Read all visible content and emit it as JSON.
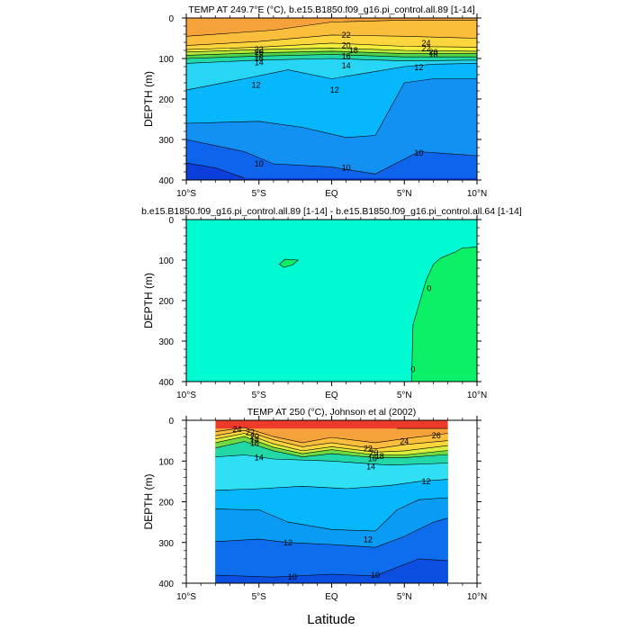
{
  "figure": {
    "x_axis_label": "Latitude"
  },
  "chart_data": [
    {
      "type": "contour",
      "title": "TEMP AT 249.7°E (°C), b.e15.B1850.f09_g16.pi_control.all.89 [1-14]",
      "xlabel": "Latitude",
      "ylabel": "DEPTH (m)",
      "xlim": [
        -10,
        10
      ],
      "ylim": [
        400,
        0
      ],
      "x_ticks": [
        "10°S",
        "5°S",
        "EQ",
        "5°N",
        "10°N"
      ],
      "y_ticks": [
        "0",
        "100",
        "200",
        "300",
        "400"
      ],
      "data_x_range": [
        -10,
        10
      ],
      "contour_interval": 1,
      "bands": [
        {
          "min": 26,
          "max": 28,
          "color": "#f5a23a"
        },
        {
          "min": 24,
          "max": 26,
          "color": "#fbbd3c"
        },
        {
          "min": 22,
          "max": 24,
          "color": "#fdd63e"
        },
        {
          "min": 20,
          "max": 22,
          "color": "#f3ef3c"
        },
        {
          "min": 18,
          "max": 20,
          "color": "#b5e73b"
        },
        {
          "min": 16,
          "max": 18,
          "color": "#4fd44a"
        },
        {
          "min": 14,
          "max": 16,
          "color": "#21d8a6"
        },
        {
          "min": 12,
          "max": 14,
          "color": "#27d6f5"
        },
        {
          "min": 11,
          "max": 12,
          "color": "#07b7fb"
        },
        {
          "min": 10,
          "max": 11,
          "color": "#1291f2"
        },
        {
          "min": 9,
          "max": 10,
          "color": "#0e64ea"
        },
        {
          "min": 8,
          "max": 9,
          "color": "#0b3edb"
        }
      ],
      "contours": [
        {
          "level": 26,
          "points": [
            [
              -10,
              45
            ],
            [
              -4,
              30
            ],
            [
              0,
              10
            ],
            [
              5,
              5
            ],
            [
              10,
              5
            ]
          ]
        },
        {
          "level": 24,
          "points": [
            [
              -10,
              68
            ],
            [
              -5,
              58
            ],
            [
              0,
              42
            ],
            [
              5,
              45
            ],
            [
              10,
              50
            ]
          ]
        },
        {
          "level": 22,
          "points": [
            [
              -10,
              78
            ],
            [
              -5,
              72
            ],
            [
              0,
              62
            ],
            [
              5,
              70
            ],
            [
              10,
              72
            ]
          ]
        },
        {
          "level": 20,
          "points": [
            [
              -10,
              84
            ],
            [
              -5,
              78
            ],
            [
              0,
              74
            ],
            [
              5,
              80
            ],
            [
              10,
              82
            ]
          ]
        },
        {
          "level": 18,
          "points": [
            [
              -10,
              92
            ],
            [
              -5,
              86
            ],
            [
              0,
              82
            ],
            [
              5,
              88
            ],
            [
              10,
              88
            ]
          ]
        },
        {
          "level": 16,
          "points": [
            [
              -10,
              100
            ],
            [
              -5,
              94
            ],
            [
              0,
              90
            ],
            [
              5,
              96
            ],
            [
              10,
              96
            ]
          ]
        },
        {
          "level": 14,
          "points": [
            [
              -10,
              112
            ],
            [
              -5,
              104
            ],
            [
              0,
              100
            ],
            [
              5,
              106
            ],
            [
              10,
              104
            ]
          ]
        },
        {
          "level": 12,
          "points": [
            [
              -10,
              178
            ],
            [
              -6,
              150
            ],
            [
              -3,
              128
            ],
            [
              0,
              150
            ],
            [
              3,
              132
            ],
            [
              5,
              120
            ],
            [
              7,
              114
            ],
            [
              10,
              112
            ]
          ]
        },
        {
          "level": 11,
          "points": [
            [
              -10,
              260
            ],
            [
              -5,
              255
            ],
            [
              -2,
              270
            ],
            [
              1,
              295
            ],
            [
              3,
              290
            ],
            [
              5,
              160
            ],
            [
              7,
              150
            ],
            [
              10,
              150
            ]
          ]
        },
        {
          "level": 10,
          "points": [
            [
              -10,
              300
            ],
            [
              -6,
              330
            ],
            [
              -4,
              360
            ],
            [
              0,
              368
            ],
            [
              3,
              385
            ],
            [
              6,
              330
            ],
            [
              10,
              340
            ]
          ]
        },
        {
          "level": 9,
          "points": [
            [
              -10,
              358
            ],
            [
              -8,
              370
            ],
            [
              -6,
              395
            ]
          ]
        }
      ],
      "labels": [
        {
          "text": "22",
          "x": -5,
          "y": 78
        },
        {
          "text": "20",
          "x": -5,
          "y": 84
        },
        {
          "text": "18",
          "x": -5,
          "y": 92
        },
        {
          "text": "16",
          "x": -5,
          "y": 100
        },
        {
          "text": "14",
          "x": -5,
          "y": 110
        },
        {
          "text": "22",
          "x": 1,
          "y": 42
        },
        {
          "text": "20",
          "x": 1,
          "y": 68
        },
        {
          "text": "18",
          "x": 1.5,
          "y": 80
        },
        {
          "text": "16",
          "x": 1,
          "y": 94
        },
        {
          "text": "14",
          "x": 1,
          "y": 118
        },
        {
          "text": "12",
          "x": 0.2,
          "y": 178
        },
        {
          "text": "12",
          "x": -5.2,
          "y": 165
        },
        {
          "text": "12",
          "x": 6,
          "y": 122
        },
        {
          "text": "24",
          "x": 6.5,
          "y": 62
        },
        {
          "text": "22",
          "x": 6.5,
          "y": 75
        },
        {
          "text": "20",
          "x": 7,
          "y": 84
        },
        {
          "text": "18",
          "x": 7,
          "y": 90
        },
        {
          "text": "10",
          "x": -5,
          "y": 360
        },
        {
          "text": "10",
          "x": 1,
          "y": 370
        },
        {
          "text": "10",
          "x": 6,
          "y": 333
        }
      ]
    },
    {
      "type": "contour",
      "title": "b.e15.B1850.f09_g16.pi_control.all.89 [1-14] - b.e15.B1850.f09_g16.pi_control.all.64 [1-14]",
      "xlabel": "Latitude",
      "ylabel": "DEPTH (m)",
      "xlim": [
        -10,
        10
      ],
      "ylim": [
        400,
        0
      ],
      "x_ticks": [
        "10°S",
        "5°S",
        "EQ",
        "5°N",
        "10°N"
      ],
      "y_ticks": [
        "0",
        "100",
        "200",
        "300",
        "400"
      ],
      "data_x_range": [
        -10,
        10
      ],
      "bands": [
        {
          "min": -0.5,
          "max": 0,
          "color": "#00fad2"
        },
        {
          "min": 0,
          "max": 0.5,
          "color": "#0bf066"
        }
      ],
      "contours": [
        {
          "level": 0,
          "points": [
            [
              5.5,
              400
            ],
            [
              5.6,
              260
            ],
            [
              6.5,
              150
            ],
            [
              7,
              110
            ],
            [
              7.5,
              95
            ],
            [
              8.5,
              80
            ],
            [
              9,
              70
            ],
            [
              10,
              68
            ]
          ]
        },
        {
          "level": 0,
          "closed": true,
          "points": [
            [
              -3.6,
              110
            ],
            [
              -3.2,
              98
            ],
            [
              -2.3,
              100
            ],
            [
              -2.7,
              112
            ],
            [
              -3.3,
              118
            ]
          ]
        }
      ],
      "labels": [
        {
          "text": "0",
          "x": 6.7,
          "y": 170
        },
        {
          "text": "0",
          "x": 5.6,
          "y": 370
        }
      ]
    },
    {
      "type": "contour",
      "title": "TEMP AT 250 (°C), Johnson et al (2002)",
      "xlabel": "Latitude",
      "ylabel": "DEPTH (m)",
      "xlim": [
        -10,
        10
      ],
      "ylim": [
        400,
        0
      ],
      "x_ticks": [
        "10°S",
        "5°S",
        "EQ",
        "5°N",
        "10°N"
      ],
      "y_ticks": [
        "0",
        "100",
        "200",
        "300",
        "400"
      ],
      "data_x_range": [
        -8,
        8
      ],
      "contour_interval": 1,
      "bands": [
        {
          "min": 26,
          "max": 28,
          "color": "#ee3a2b"
        },
        {
          "min": 24,
          "max": 26,
          "color": "#f5a23a"
        },
        {
          "min": 22,
          "max": 24,
          "color": "#fbbd3c"
        },
        {
          "min": 20,
          "max": 22,
          "color": "#fdd63e"
        },
        {
          "min": 18,
          "max": 20,
          "color": "#d9ed3c"
        },
        {
          "min": 16,
          "max": 18,
          "color": "#6fdb43"
        },
        {
          "min": 14,
          "max": 16,
          "color": "#21d8a6"
        },
        {
          "min": 12,
          "max": 14,
          "color": "#2fe0f5"
        },
        {
          "min": 11,
          "max": 12,
          "color": "#07b7fb"
        },
        {
          "min": 10,
          "max": 11,
          "color": "#0a9cf4"
        },
        {
          "min": 9,
          "max": 10,
          "color": "#0e6ded"
        },
        {
          "min": 8,
          "max": 9,
          "color": "#0b4ee0"
        }
      ],
      "contours": [
        {
          "level": 26,
          "points": [
            [
              4.5,
              20
            ],
            [
              6,
              20
            ],
            [
              8,
              20
            ]
          ]
        },
        {
          "level": 24,
          "points": [
            [
              -8,
              28
            ],
            [
              -6,
              18
            ],
            [
              -4,
              40
            ],
            [
              -2,
              55
            ],
            [
              0,
              42
            ],
            [
              3,
              55
            ],
            [
              5,
              45
            ],
            [
              8,
              32
            ]
          ]
        },
        {
          "level": 22,
          "points": [
            [
              -8,
              38
            ],
            [
              -6,
              25
            ],
            [
              -4,
              48
            ],
            [
              -2,
              65
            ],
            [
              0,
              55
            ],
            [
              3,
              70
            ],
            [
              5,
              60
            ],
            [
              8,
              50
            ]
          ]
        },
        {
          "level": 20,
          "points": [
            [
              -8,
              46
            ],
            [
              -6,
              32
            ],
            [
              -4,
              58
            ],
            [
              -2,
              75
            ],
            [
              0,
              65
            ],
            [
              3,
              78
            ],
            [
              5,
              75
            ],
            [
              8,
              62
            ]
          ]
        },
        {
          "level": 18,
          "points": [
            [
              -8,
              55
            ],
            [
              -6,
              40
            ],
            [
              -4,
              66
            ],
            [
              -2,
              82
            ],
            [
              0,
              72
            ],
            [
              3,
              85
            ],
            [
              5,
              85
            ],
            [
              8,
              74
            ]
          ]
        },
        {
          "level": 16,
          "points": [
            [
              -8,
              68
            ],
            [
              -6,
              52
            ],
            [
              -4,
              75
            ],
            [
              -2,
              90
            ],
            [
              0,
              82
            ],
            [
              3,
              92
            ],
            [
              5,
              92
            ],
            [
              8,
              84
            ]
          ]
        },
        {
          "level": 14,
          "points": [
            [
              -8,
              90
            ],
            [
              -6,
              85
            ],
            [
              -4,
              95
            ],
            [
              0,
              100
            ],
            [
              4,
              110
            ],
            [
              8,
              105
            ]
          ]
        },
        {
          "level": 12,
          "points": [
            [
              -8,
              172
            ],
            [
              -5,
              168
            ],
            [
              -2,
              162
            ],
            [
              1,
              168
            ],
            [
              4,
              160
            ],
            [
              6,
              150
            ],
            [
              8,
              145
            ]
          ]
        },
        {
          "level": 11,
          "points": [
            [
              -8,
              218
            ],
            [
              -5,
              220
            ],
            [
              -3,
              250
            ],
            [
              0,
              268
            ],
            [
              3,
              272
            ],
            [
              4.5,
              220
            ],
            [
              6,
              195
            ],
            [
              8,
              190
            ]
          ]
        },
        {
          "level": 10,
          "points": [
            [
              -8,
              298
            ],
            [
              -5,
              292
            ],
            [
              -3,
              300
            ],
            [
              0,
              305
            ],
            [
              3,
              312
            ],
            [
              5,
              285
            ],
            [
              7,
              250
            ],
            [
              8,
              240
            ]
          ]
        },
        {
          "level": 9,
          "points": [
            [
              -8,
              380
            ],
            [
              -4,
              385
            ],
            [
              0,
              378
            ],
            [
              3,
              382
            ],
            [
              6,
              340
            ],
            [
              8,
              345
            ]
          ]
        }
      ],
      "labels": [
        {
          "text": "24",
          "x": -6.5,
          "y": 22
        },
        {
          "text": "22",
          "x": -5.6,
          "y": 30
        },
        {
          "text": "20",
          "x": -5.3,
          "y": 40
        },
        {
          "text": "18",
          "x": -5.3,
          "y": 48
        },
        {
          "text": "16",
          "x": -5.3,
          "y": 56
        },
        {
          "text": "14",
          "x": -5,
          "y": 92
        },
        {
          "text": "22",
          "x": 2.5,
          "y": 70
        },
        {
          "text": "20",
          "x": 2.9,
          "y": 80
        },
        {
          "text": "18",
          "x": 3.3,
          "y": 88
        },
        {
          "text": "16",
          "x": 2.8,
          "y": 94
        },
        {
          "text": "14",
          "x": 2.7,
          "y": 114
        },
        {
          "text": "24",
          "x": 5,
          "y": 52
        },
        {
          "text": "26",
          "x": 7.2,
          "y": 38
        },
        {
          "text": "12",
          "x": 6.5,
          "y": 150
        },
        {
          "text": "12",
          "x": -3,
          "y": 300
        },
        {
          "text": "12",
          "x": 2.5,
          "y": 293
        },
        {
          "text": "10",
          "x": -2.7,
          "y": 385
        },
        {
          "text": "10",
          "x": 3,
          "y": 380
        }
      ]
    }
  ]
}
